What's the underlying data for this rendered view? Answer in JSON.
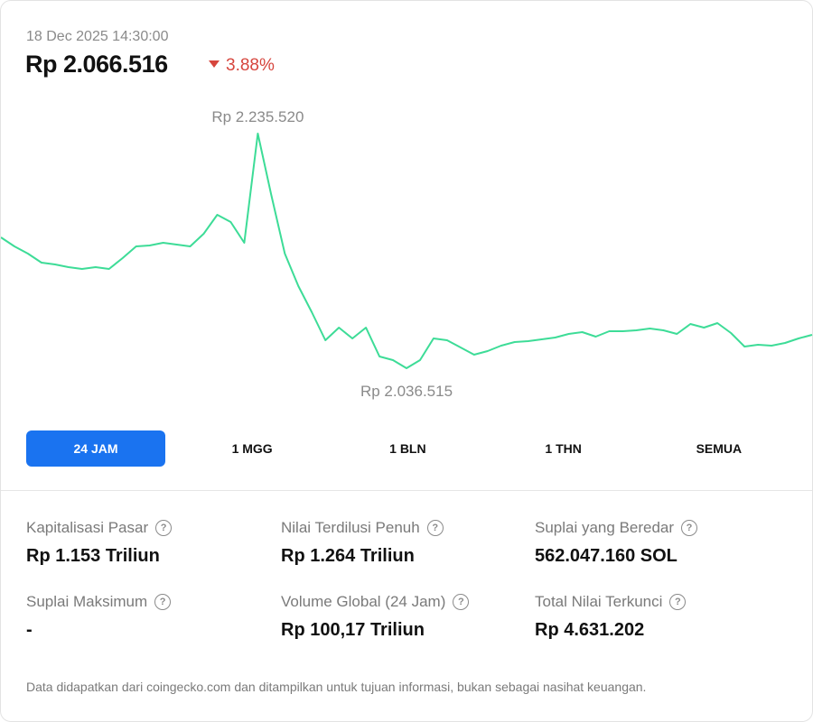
{
  "header": {
    "date": "18 Dec 2025 14:30:00",
    "price": "Rp 2.066.516",
    "change": "3.88%",
    "direction": "down"
  },
  "chart_data": {
    "type": "line",
    "color": "#3ddc97",
    "values": [
      2147500,
      2139850,
      2133720,
      2126070,
      2124540,
      2122240,
      2120710,
      2122240,
      2120710,
      2129900,
      2139850,
      2140610,
      2142910,
      2141380,
      2139850,
      2150560,
      2166630,
      2160510,
      2142910,
      2235520,
      2183470,
      2133720,
      2106170,
      2083970,
      2060240,
      2070960,
      2061770,
      2070960,
      2046470,
      2043400,
      2036515,
      2043400,
      2061770,
      2060240,
      2054120,
      2048000,
      2051060,
      2055650,
      2058710,
      2059480,
      2061010,
      2062540,
      2065600,
      2067130,
      2063300,
      2067900,
      2067900,
      2068660,
      2070190,
      2068660,
      2065600,
      2074020,
      2070960,
      2074790,
      2066370,
      2054890,
      2056420,
      2055650,
      2057950,
      2061770,
      2064840
    ],
    "annotations": [
      {
        "value": 2235520,
        "label": "Rp 2.235.520"
      },
      {
        "value": 2036515,
        "label": "Rp 2.036.515"
      }
    ]
  },
  "tabs": {
    "items": [
      "24 JAM",
      "1 MGG",
      "1 BLN",
      "1 THN",
      "SEMUA"
    ],
    "active": 0
  },
  "stats": [
    {
      "label": "Kapitalisasi Pasar",
      "value": "Rp 1.153 Triliun"
    },
    {
      "label": "Nilai Terdilusi Penuh",
      "value": "Rp 1.264 Triliun"
    },
    {
      "label": "Suplai yang Beredar",
      "value": "562.047.160 SOL"
    },
    {
      "label": "Suplai Maksimum",
      "value": "-"
    },
    {
      "label": "Volume Global (24 Jam)",
      "value": "Rp 100,17 Triliun"
    },
    {
      "label": "Total Nilai Terkunci",
      "value": "Rp 4.631.202"
    }
  ],
  "footer": {
    "note": "Data didapatkan dari coingecko.com dan ditampilkan untuk tujuan informasi, bukan sebagai nasihat keuangan."
  }
}
